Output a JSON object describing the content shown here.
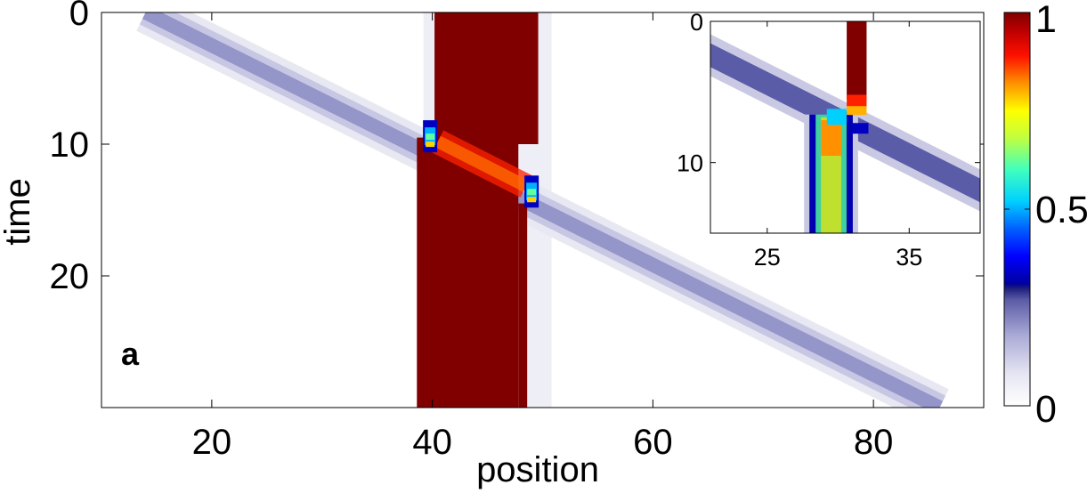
{
  "chart_data": [
    {
      "type": "heatmap",
      "panel_label": "a",
      "xlabel": "position",
      "ylabel": "time",
      "xlim": [
        10,
        90
      ],
      "ylim": [
        0,
        30
      ],
      "y_inverted": true,
      "xticks": [
        20,
        40,
        60,
        80
      ],
      "yticks": [
        0,
        10,
        20
      ],
      "features": [
        {
          "kind": "band",
          "x_from": 40.0,
          "x_to": 50.0,
          "t_from": 0,
          "t_to": 30,
          "value": 1.0,
          "note_visible": "dark red block"
        },
        {
          "kind": "diagonal_track",
          "x_at_t0": 14,
          "x_at_t30": 86,
          "width": 3.4,
          "value": 0.18
        },
        {
          "kind": "spot",
          "x": 39.8,
          "t": 9.4,
          "value": 0.35
        },
        {
          "kind": "spot",
          "x": 49.0,
          "t": 13.6,
          "value": 0.35
        },
        {
          "kind": "streak",
          "from": [
            40.5,
            9.8
          ],
          "to": [
            48.5,
            13.2
          ],
          "value": 0.85
        }
      ]
    },
    {
      "type": "heatmap",
      "panel_label": "inset",
      "xlim": [
        21,
        40
      ],
      "ylim": [
        0,
        15
      ],
      "y_inverted": true,
      "xticks": [
        25,
        35
      ],
      "yticks": [
        0,
        10
      ],
      "features": [
        {
          "kind": "diagonal_track",
          "x_at_t0": 20,
          "x_at_t15": 41,
          "width": 1.3,
          "value": 0.28
        },
        {
          "kind": "column",
          "x_from": 30.6,
          "x_to": 32.0,
          "t_from": 0,
          "t_to": 5.5,
          "value": 1.0
        },
        {
          "kind": "column",
          "x_from": 28.6,
          "x_to": 30.4,
          "t_from": 6.5,
          "t_to": 15,
          "value": 0.72
        },
        {
          "kind": "spot",
          "x": 31.3,
          "t": 6.5,
          "value": 0.85
        }
      ]
    }
  ],
  "colorbar": {
    "min": 0,
    "max": 1,
    "ticks": [
      {
        "value": 0,
        "label": "0"
      },
      {
        "value": 0.5,
        "label": "0.5"
      },
      {
        "value": 1,
        "label": "1"
      }
    ]
  },
  "colors": {
    "dark_red": "#800000",
    "track": "#8e8fc6",
    "axis": "#000000"
  }
}
